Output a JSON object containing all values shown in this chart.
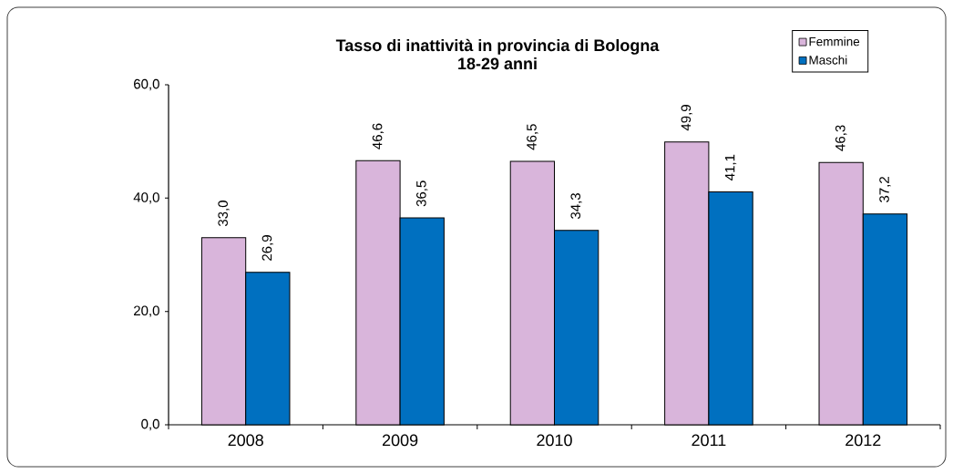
{
  "chart_data": {
    "type": "bar",
    "title": "Tasso di inattività in provincia di Bologna",
    "subtitle": "18-29 anni",
    "categories": [
      "2008",
      "2009",
      "2010",
      "2011",
      "2012"
    ],
    "series": [
      {
        "name": "Femmine",
        "color": "#d9b5db",
        "values": [
          33.0,
          46.6,
          46.5,
          49.9,
          46.3
        ],
        "value_labels": [
          "33,0",
          "46,6",
          "46,5",
          "49,9",
          "46,3"
        ]
      },
      {
        "name": "Maschi",
        "color": "#0070c0",
        "values": [
          26.9,
          36.5,
          34.3,
          41.1,
          37.2
        ],
        "value_labels": [
          "26,9",
          "36,5",
          "34,3",
          "41,1",
          "37,2"
        ]
      }
    ],
    "ylim": [
      0,
      60
    ],
    "yticks": [
      {
        "value": 0,
        "label": "0,0"
      },
      {
        "value": 20,
        "label": "20,0"
      },
      {
        "value": 40,
        "label": "40,0"
      },
      {
        "value": 60,
        "label": "60,0"
      }
    ],
    "legend": "top right"
  }
}
